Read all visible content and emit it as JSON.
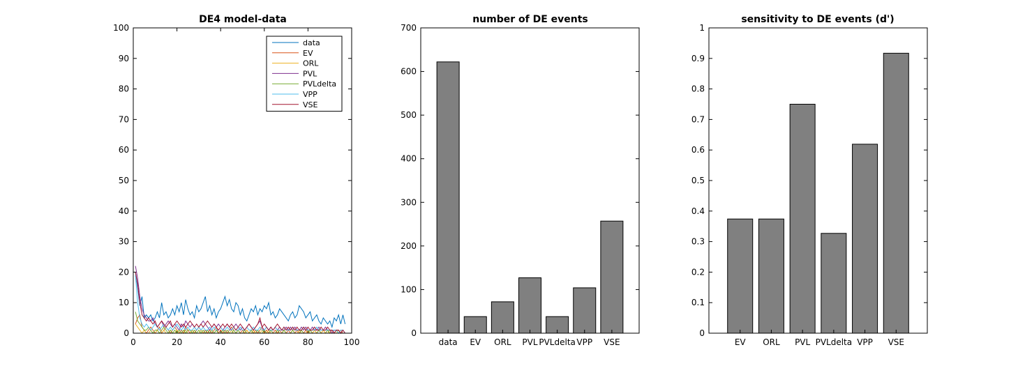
{
  "colors": {
    "axis": "#000000",
    "bar_fill": "#808080",
    "bar_edge": "#000000",
    "background": "#ffffff"
  },
  "chart_data": [
    {
      "type": "line",
      "title": "DE4 model-data",
      "xlabel": "",
      "ylabel": "",
      "xlim": [
        0,
        100
      ],
      "ylim": [
        0,
        100
      ],
      "xticks": [
        "0",
        "20",
        "40",
        "60",
        "80",
        "100"
      ],
      "yticks": [
        "0",
        "10",
        "20",
        "30",
        "40",
        "50",
        "60",
        "70",
        "80",
        "90",
        "100"
      ],
      "legend_position": "top-right",
      "x": [
        1,
        2,
        3,
        4,
        5,
        6,
        7,
        8,
        9,
        10,
        11,
        12,
        13,
        14,
        15,
        16,
        17,
        18,
        19,
        20,
        21,
        22,
        23,
        24,
        25,
        26,
        27,
        28,
        29,
        30,
        31,
        32,
        33,
        34,
        35,
        36,
        37,
        38,
        39,
        40,
        41,
        42,
        43,
        44,
        45,
        46,
        47,
        48,
        49,
        50,
        51,
        52,
        53,
        54,
        55,
        56,
        57,
        58,
        59,
        60,
        61,
        62,
        63,
        64,
        65,
        66,
        67,
        68,
        69,
        70,
        71,
        72,
        73,
        74,
        75,
        76,
        77,
        78,
        79,
        80,
        81,
        82,
        83,
        84,
        85,
        86,
        87,
        88,
        89,
        90,
        91,
        92,
        93,
        94,
        95,
        96,
        97
      ],
      "series": [
        {
          "name": "data",
          "color": "#0072BD",
          "values": [
            20,
            15,
            9,
            12,
            5,
            6,
            5,
            6,
            4,
            5,
            7,
            5,
            10,
            6,
            7,
            5,
            6,
            8,
            6,
            9,
            7,
            10,
            6,
            11,
            8,
            6,
            7,
            5,
            9,
            7,
            8,
            10,
            12,
            7,
            9,
            6,
            8,
            5,
            7,
            8,
            10,
            12,
            9,
            11,
            8,
            7,
            10,
            9,
            6,
            8,
            5,
            4,
            6,
            8,
            7,
            9,
            6,
            8,
            7,
            9,
            8,
            10,
            6,
            7,
            5,
            6,
            8,
            7,
            6,
            5,
            4,
            6,
            7,
            5,
            6,
            9,
            8,
            7,
            5,
            6,
            7,
            4,
            5,
            6,
            4,
            3,
            5,
            4,
            3,
            4,
            2,
            5,
            4,
            6,
            3,
            6,
            3
          ]
        },
        {
          "name": "EV",
          "color": "#D95319",
          "values": [
            3,
            5,
            6,
            2,
            1,
            0,
            1,
            2,
            1,
            0,
            1,
            2,
            0,
            1,
            2,
            1,
            0,
            1,
            2,
            1,
            0,
            1,
            0,
            2,
            1,
            0,
            1,
            0,
            1,
            2,
            1,
            0,
            1,
            0,
            1,
            0,
            1,
            2,
            0,
            1,
            0,
            1,
            0,
            1,
            2,
            1,
            0,
            1,
            0,
            1,
            0,
            1,
            0,
            1,
            0,
            1,
            0,
            1,
            2,
            0,
            1,
            0,
            1,
            0,
            1,
            0,
            1,
            0,
            1,
            0,
            1,
            0,
            1,
            0,
            1,
            0,
            1,
            0,
            1,
            0,
            1,
            0,
            1,
            0,
            1,
            0,
            1,
            0,
            1,
            0,
            1,
            0,
            1,
            0,
            1,
            0,
            0
          ]
        },
        {
          "name": "ORL",
          "color": "#EDB120",
          "values": [
            3,
            2,
            1,
            0,
            1,
            0,
            0,
            1,
            0,
            0,
            1,
            0,
            0,
            1,
            0,
            0,
            1,
            0,
            0,
            1,
            0,
            0,
            0,
            1,
            0,
            0,
            1,
            0,
            0,
            0,
            1,
            0,
            0,
            1,
            0,
            0,
            0,
            1,
            0,
            0,
            1,
            0,
            0,
            0,
            1,
            0,
            0,
            1,
            0,
            0,
            0,
            1,
            0,
            0,
            1,
            0,
            0,
            0,
            1,
            0,
            0,
            1,
            0,
            0,
            0,
            1,
            0,
            0,
            1,
            0,
            0,
            0,
            1,
            0,
            0,
            1,
            0,
            0,
            0,
            1,
            0,
            0,
            1,
            0,
            0,
            0,
            1,
            0,
            0,
            1,
            0,
            0,
            0,
            1,
            0,
            0,
            0
          ]
        },
        {
          "name": "PVL",
          "color": "#7E2F8E",
          "values": [
            22,
            18,
            12,
            8,
            6,
            5,
            4,
            4,
            5,
            3,
            2,
            3,
            4,
            2,
            3,
            4,
            3,
            2,
            3,
            2,
            1,
            3,
            2,
            4,
            3,
            2,
            3,
            2,
            1,
            2,
            3,
            4,
            3,
            2,
            1,
            2,
            3,
            2,
            3,
            2,
            1,
            2,
            3,
            2,
            1,
            2,
            3,
            2,
            1,
            2,
            1,
            2,
            3,
            2,
            1,
            2,
            3,
            4,
            2,
            1,
            2,
            1,
            2,
            1,
            2,
            1,
            2,
            1,
            1,
            2,
            1,
            2,
            1,
            2,
            1,
            1,
            2,
            1,
            2,
            1,
            1,
            2,
            1,
            1,
            2,
            1,
            1,
            2,
            1,
            1,
            0,
            1,
            1,
            1,
            0,
            1,
            0
          ]
        },
        {
          "name": "PVLdelta",
          "color": "#77AC30",
          "values": [
            7,
            4,
            3,
            2,
            1,
            1,
            2,
            1,
            0,
            1,
            1,
            0,
            1,
            2,
            1,
            0,
            1,
            0,
            1,
            0,
            1,
            0,
            1,
            0,
            1,
            1,
            0,
            1,
            0,
            1,
            0,
            1,
            0,
            1,
            0,
            1,
            0,
            1,
            0,
            0,
            1,
            0,
            1,
            0,
            0,
            1,
            0,
            1,
            0,
            0,
            1,
            0,
            0,
            1,
            0,
            0,
            1,
            0,
            0,
            1,
            0,
            0,
            1,
            0,
            0,
            1,
            0,
            0,
            1,
            0,
            0,
            0,
            1,
            0,
            0,
            0,
            1,
            0,
            0,
            0,
            1,
            0,
            0,
            0,
            1,
            0,
            0,
            0,
            1,
            0,
            0,
            0,
            1,
            0,
            0,
            0,
            0
          ]
        },
        {
          "name": "VPP",
          "color": "#4DBEEE",
          "values": [
            19,
            10,
            5,
            3,
            2,
            3,
            2,
            1,
            2,
            3,
            2,
            1,
            2,
            3,
            2,
            1,
            2,
            1,
            2,
            3,
            2,
            1,
            2,
            1,
            2,
            1,
            1,
            2,
            1,
            2,
            1,
            2,
            1,
            1,
            2,
            1,
            2,
            1,
            1,
            2,
            1,
            1,
            2,
            1,
            1,
            2,
            1,
            1,
            2,
            1,
            1,
            2,
            1,
            1,
            2,
            1,
            1,
            2,
            1,
            1,
            2,
            1,
            1,
            1,
            2,
            1,
            1,
            1,
            2,
            1,
            1,
            1,
            2,
            1,
            1,
            1,
            1,
            2,
            1,
            1,
            1,
            1,
            1,
            2,
            1,
            1,
            1,
            1,
            1,
            1,
            1,
            1,
            1,
            0,
            1,
            1,
            0
          ]
        },
        {
          "name": "VSE",
          "color": "#A2142F",
          "values": [
            20,
            16,
            10,
            6,
            5,
            4,
            5,
            4,
            3,
            4,
            2,
            3,
            4,
            3,
            2,
            3,
            4,
            2,
            3,
            4,
            3,
            2,
            3,
            2,
            3,
            4,
            3,
            2,
            3,
            2,
            3,
            2,
            3,
            4,
            3,
            2,
            3,
            2,
            1,
            2,
            3,
            2,
            3,
            2,
            3,
            2,
            1,
            2,
            3,
            2,
            1,
            2,
            3,
            2,
            1,
            2,
            3,
            5,
            2,
            3,
            2,
            1,
            2,
            1,
            2,
            3,
            2,
            1,
            2,
            1,
            2,
            1,
            2,
            1,
            2,
            1,
            1,
            2,
            1,
            2,
            1,
            1,
            2,
            1,
            1,
            2,
            1,
            1,
            2,
            1,
            1,
            0,
            1,
            1,
            0,
            1,
            0
          ]
        }
      ]
    },
    {
      "type": "bar",
      "title": "number of DE events",
      "xlabel": "",
      "ylabel": "",
      "ylim": [
        0,
        700
      ],
      "yticks": [
        "0",
        "100",
        "200",
        "300",
        "400",
        "500",
        "600",
        "700"
      ],
      "categories": [
        "data",
        "EV",
        "ORL",
        "PVL",
        "PVLdelta",
        "VPP",
        "VSE"
      ],
      "values": [
        622,
        38,
        72,
        127,
        38,
        104,
        257
      ]
    },
    {
      "type": "bar",
      "title": "sensitivity to DE events (d')",
      "xlabel": "",
      "ylabel": "",
      "ylim": [
        0,
        1
      ],
      "yticks": [
        "0",
        "0.1",
        "0.2",
        "0.3",
        "0.4",
        "0.5",
        "0.6",
        "0.7",
        "0.8",
        "0.9",
        "1"
      ],
      "categories": [
        "EV",
        "ORL",
        "PVL",
        "PVLdelta",
        "VPP",
        "VSE"
      ],
      "values": [
        0.374,
        0.374,
        0.75,
        0.327,
        0.619,
        0.917
      ]
    }
  ]
}
